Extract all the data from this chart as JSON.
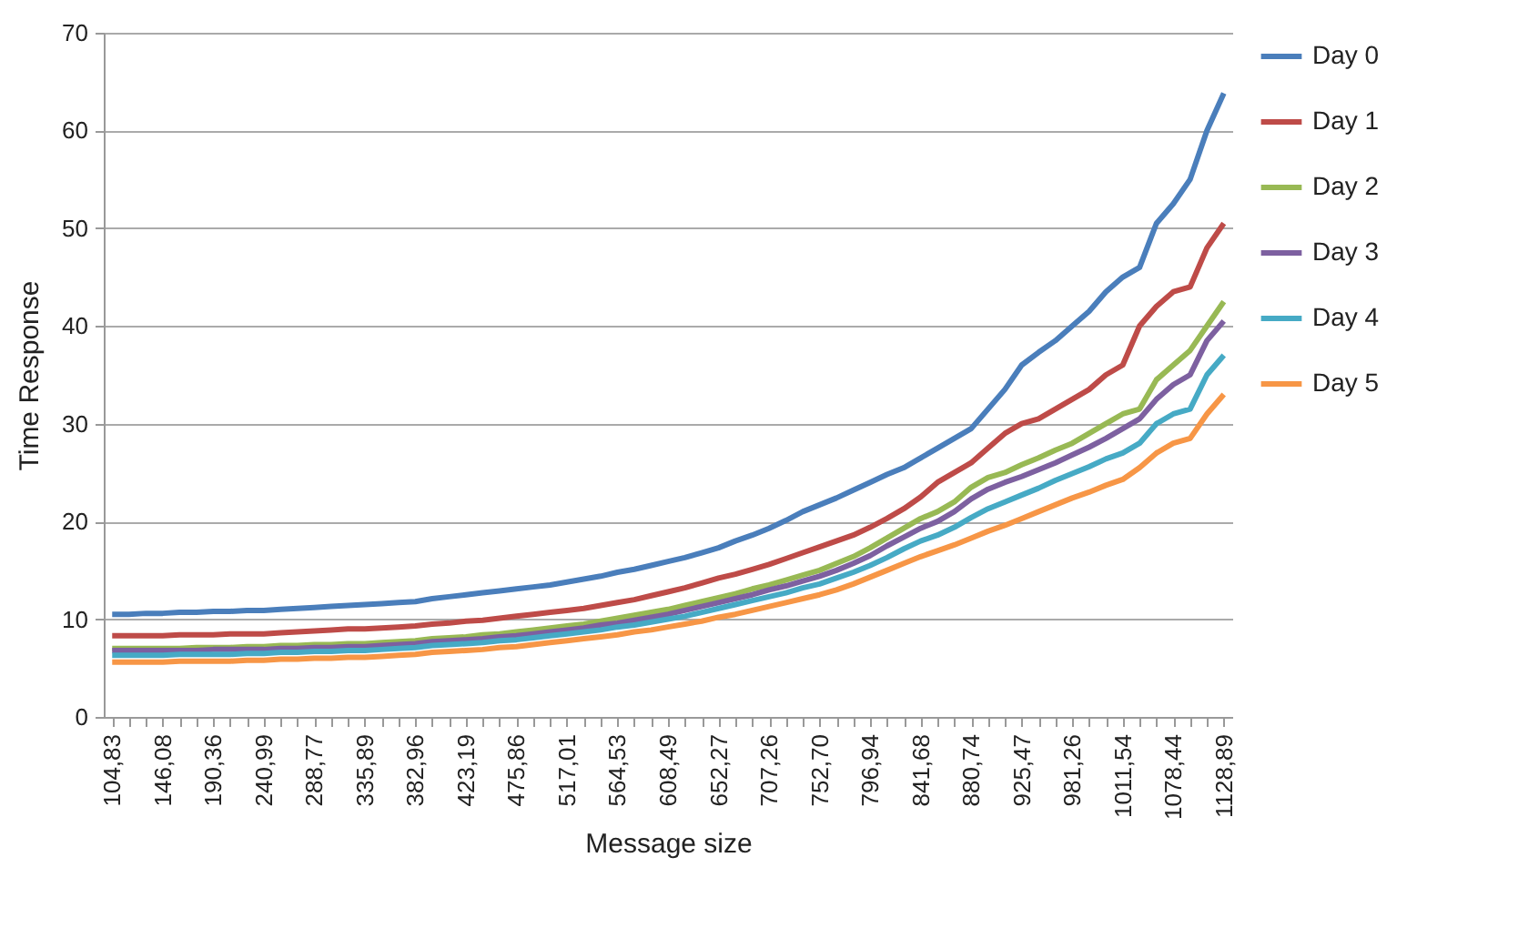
{
  "chart_data": {
    "type": "line",
    "xlabel": "Message size",
    "ylabel": "Time Response",
    "categories": [
      "104,83",
      null,
      null,
      "146,08",
      null,
      null,
      "190,36",
      null,
      null,
      "240,99",
      null,
      null,
      "288,77",
      null,
      null,
      "335,89",
      null,
      null,
      "382,96",
      null,
      null,
      "423,19",
      null,
      null,
      "475,86",
      null,
      null,
      "517,01",
      null,
      null,
      "564,53",
      null,
      null,
      "608,49",
      null,
      null,
      "652,27",
      null,
      null,
      "707,26",
      null,
      null,
      "752,70",
      null,
      null,
      "796,94",
      null,
      null,
      "841,68",
      null,
      null,
      "880,74",
      null,
      null,
      "925,47",
      null,
      null,
      "981,26",
      null,
      null,
      "1011,54",
      null,
      null,
      "1078,44",
      null,
      null,
      "1128,89"
    ],
    "series": [
      {
        "name": "Day 0",
        "color": "#4a7ebb",
        "values": [
          10.5,
          10.5,
          10.6,
          10.6,
          10.7,
          10.7,
          10.8,
          10.8,
          10.9,
          10.9,
          11.0,
          11.1,
          11.2,
          11.3,
          11.4,
          11.5,
          11.6,
          11.7,
          11.8,
          12.1,
          12.3,
          12.5,
          12.7,
          12.9,
          13.1,
          13.3,
          13.5,
          13.8,
          14.1,
          14.4,
          14.8,
          15.1,
          15.5,
          15.9,
          16.3,
          16.8,
          17.3,
          18.0,
          18.6,
          19.3,
          20.1,
          21.0,
          21.7,
          22.4,
          23.2,
          24.0,
          24.8,
          25.5,
          26.5,
          27.5,
          28.5,
          29.5,
          31.5,
          33.5,
          36.0,
          37.3,
          38.5,
          40.0,
          41.5,
          43.5,
          45.0,
          46.0,
          50.5,
          52.5,
          55.0,
          60.0,
          63.8
        ]
      },
      {
        "name": "Day 1",
        "color": "#be4b48",
        "values": [
          8.3,
          8.3,
          8.3,
          8.3,
          8.4,
          8.4,
          8.4,
          8.5,
          8.5,
          8.5,
          8.6,
          8.7,
          8.8,
          8.9,
          9.0,
          9.0,
          9.1,
          9.2,
          9.3,
          9.5,
          9.6,
          9.8,
          9.9,
          10.1,
          10.3,
          10.5,
          10.7,
          10.9,
          11.1,
          11.4,
          11.7,
          12.0,
          12.4,
          12.8,
          13.2,
          13.7,
          14.2,
          14.6,
          15.1,
          15.6,
          16.2,
          16.8,
          17.4,
          18.0,
          18.6,
          19.4,
          20.3,
          21.3,
          22.5,
          24.0,
          25.0,
          26.0,
          27.5,
          29.0,
          30.0,
          30.5,
          31.5,
          32.5,
          33.5,
          35.0,
          36.0,
          40.0,
          42.0,
          43.5,
          44.0,
          48.0,
          50.5
        ]
      },
      {
        "name": "Day 2",
        "color": "#98b954",
        "values": [
          7.0,
          7.0,
          7.0,
          7.0,
          7.0,
          7.1,
          7.1,
          7.1,
          7.2,
          7.2,
          7.3,
          7.3,
          7.4,
          7.4,
          7.5,
          7.5,
          7.6,
          7.7,
          7.8,
          8.0,
          8.1,
          8.2,
          8.4,
          8.5,
          8.7,
          8.9,
          9.1,
          9.3,
          9.5,
          9.8,
          10.1,
          10.4,
          10.7,
          11.0,
          11.4,
          11.8,
          12.2,
          12.6,
          13.1,
          13.5,
          14.0,
          14.5,
          15.0,
          15.7,
          16.4,
          17.3,
          18.3,
          19.3,
          20.3,
          21.0,
          22.0,
          23.5,
          24.5,
          25.0,
          25.8,
          26.5,
          27.3,
          28.0,
          29.0,
          30.0,
          31.0,
          31.5,
          34.5,
          36.0,
          37.5,
          40.0,
          42.5
        ]
      },
      {
        "name": "Day 3",
        "color": "#7d60a0",
        "values": [
          6.8,
          6.8,
          6.8,
          6.8,
          6.8,
          6.8,
          6.9,
          6.9,
          6.9,
          6.9,
          7.0,
          7.0,
          7.1,
          7.1,
          7.2,
          7.2,
          7.3,
          7.4,
          7.5,
          7.7,
          7.8,
          7.9,
          8.0,
          8.2,
          8.3,
          8.5,
          8.7,
          8.9,
          9.1,
          9.4,
          9.6,
          9.9,
          10.2,
          10.5,
          10.9,
          11.3,
          11.7,
          12.1,
          12.5,
          13.0,
          13.4,
          13.9,
          14.4,
          15.0,
          15.7,
          16.5,
          17.5,
          18.4,
          19.3,
          20.0,
          21.0,
          22.3,
          23.3,
          24.0,
          24.6,
          25.3,
          26.0,
          26.8,
          27.6,
          28.5,
          29.5,
          30.5,
          32.5,
          34.0,
          35.0,
          38.5,
          40.5
        ]
      },
      {
        "name": "Day 4",
        "color": "#46aac5",
        "values": [
          6.3,
          6.3,
          6.3,
          6.3,
          6.4,
          6.4,
          6.4,
          6.4,
          6.5,
          6.5,
          6.6,
          6.6,
          6.7,
          6.7,
          6.8,
          6.8,
          6.9,
          7.0,
          7.1,
          7.3,
          7.4,
          7.5,
          7.6,
          7.8,
          7.9,
          8.1,
          8.3,
          8.5,
          8.7,
          8.9,
          9.2,
          9.4,
          9.7,
          10.0,
          10.3,
          10.7,
          11.1,
          11.5,
          11.9,
          12.3,
          12.7,
          13.2,
          13.6,
          14.2,
          14.8,
          15.5,
          16.3,
          17.2,
          18.0,
          18.6,
          19.4,
          20.4,
          21.3,
          22.0,
          22.7,
          23.4,
          24.2,
          24.9,
          25.6,
          26.4,
          27.0,
          28.0,
          30.0,
          31.0,
          31.5,
          35.0,
          37.0
        ]
      },
      {
        "name": "Day 5",
        "color": "#f79646",
        "values": [
          5.6,
          5.6,
          5.6,
          5.6,
          5.7,
          5.7,
          5.7,
          5.7,
          5.8,
          5.8,
          5.9,
          5.9,
          6.0,
          6.0,
          6.1,
          6.1,
          6.2,
          6.3,
          6.4,
          6.6,
          6.7,
          6.8,
          6.9,
          7.1,
          7.2,
          7.4,
          7.6,
          7.8,
          8.0,
          8.2,
          8.4,
          8.7,
          8.9,
          9.2,
          9.5,
          9.8,
          10.2,
          10.5,
          10.9,
          11.3,
          11.7,
          12.1,
          12.5,
          13.0,
          13.6,
          14.3,
          15.0,
          15.7,
          16.4,
          17.0,
          17.6,
          18.3,
          19.0,
          19.6,
          20.3,
          21.0,
          21.7,
          22.4,
          23.0,
          23.7,
          24.3,
          25.5,
          27.0,
          28.0,
          28.5,
          31.0,
          33.0
        ]
      }
    ],
    "ylim": [
      0,
      70
    ],
    "yticks": [
      0,
      10,
      20,
      30,
      40,
      50,
      60,
      70
    ],
    "grid": "y",
    "legend": "right",
    "marker": "none",
    "line_style": "solid"
  }
}
